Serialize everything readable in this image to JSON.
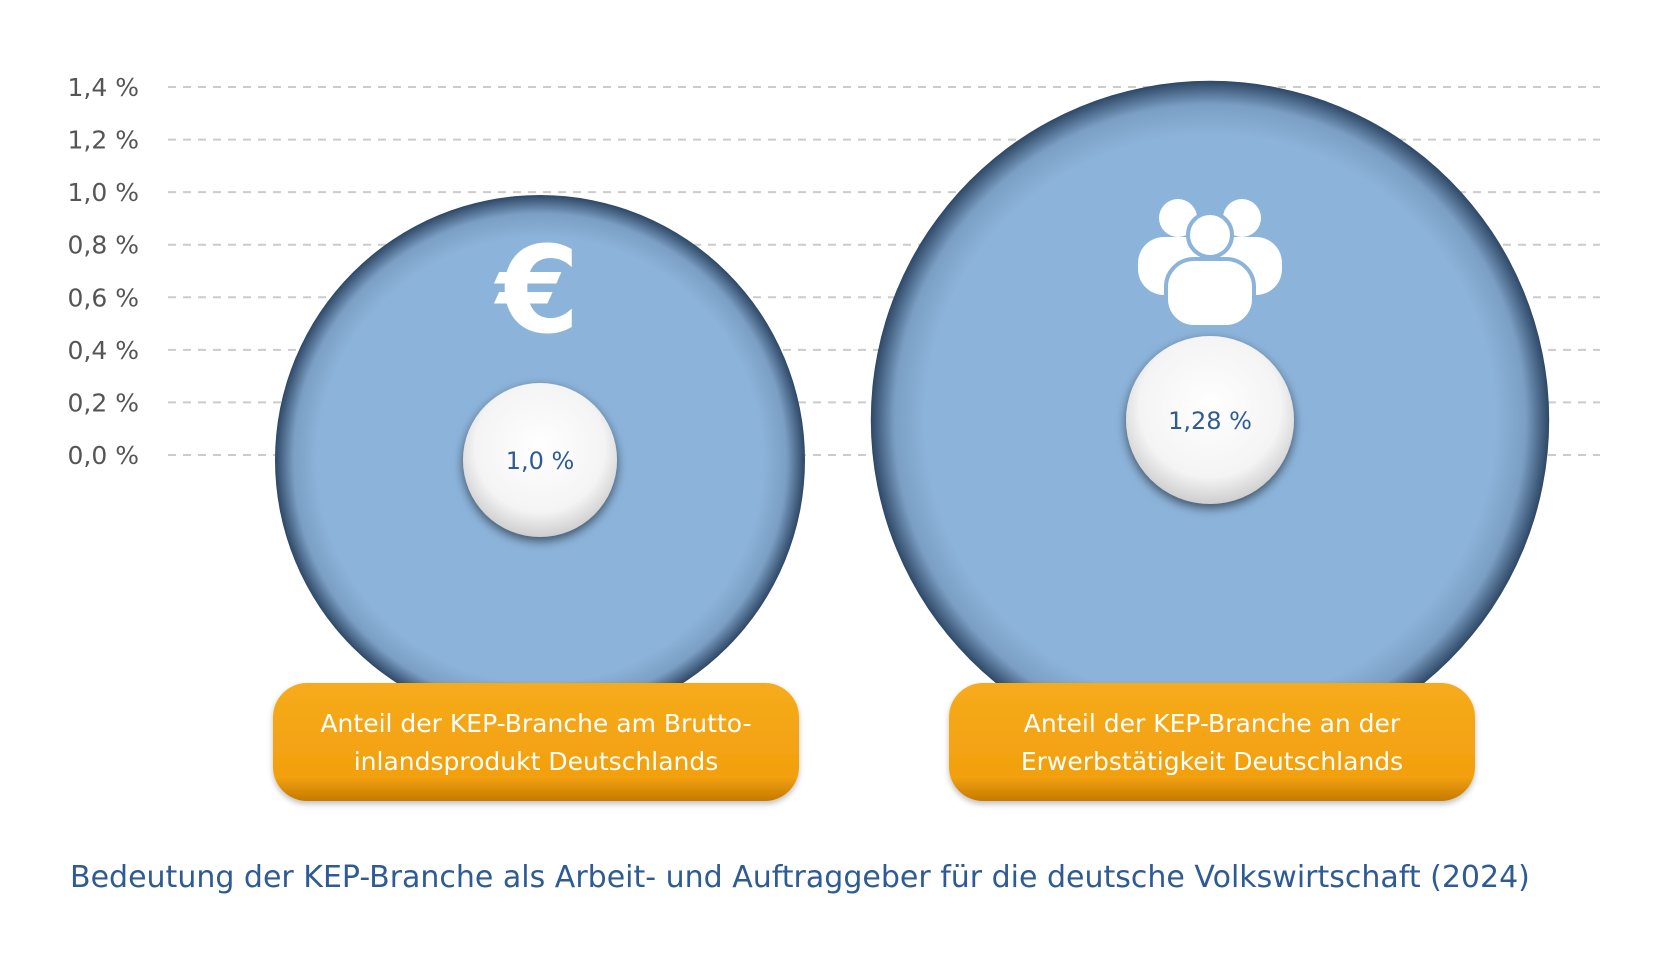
{
  "chart_data": {
    "type": "bubble",
    "title": "Bedeutung der KEP-Branche als Arbeit- und Auftraggeber für die deutsche Volkswirtschaft (2024)",
    "ylim": [
      0.0,
      1.4
    ],
    "y_ticks": [
      "0,0 %",
      "0,2 %",
      "0,4 %",
      "0,6 %",
      "0,8 %",
      "1,0 %",
      "1,2 %",
      "1,4 %"
    ],
    "y_tick_values": [
      0.0,
      0.2,
      0.4,
      0.6,
      0.8,
      1.0,
      1.2,
      1.4
    ],
    "grid": true,
    "series": [
      {
        "name": "Bruttoinlandsprodukt",
        "value": 1.0,
        "value_label": "1,0 %",
        "icon": "euro-icon",
        "category_lines": [
          "Anteil der KEP-Branche am Brutto-",
          "inlandsprodukt Deutschlands"
        ]
      },
      {
        "name": "Erwerbstätigkeit",
        "value": 1.28,
        "value_label": "1,28 %",
        "icon": "people-icon",
        "category_lines": [
          "Anteil der KEP-Branche an der",
          "Erwerbstätigkeit Deutschlands"
        ]
      }
    ],
    "colors": {
      "bubble": "#8cb3da",
      "pill": "#f2a00e",
      "pill_dark": "#c57a00",
      "value_text": "#2f5b95",
      "grid": "#cccccc",
      "title": "#2f5b95"
    }
  }
}
